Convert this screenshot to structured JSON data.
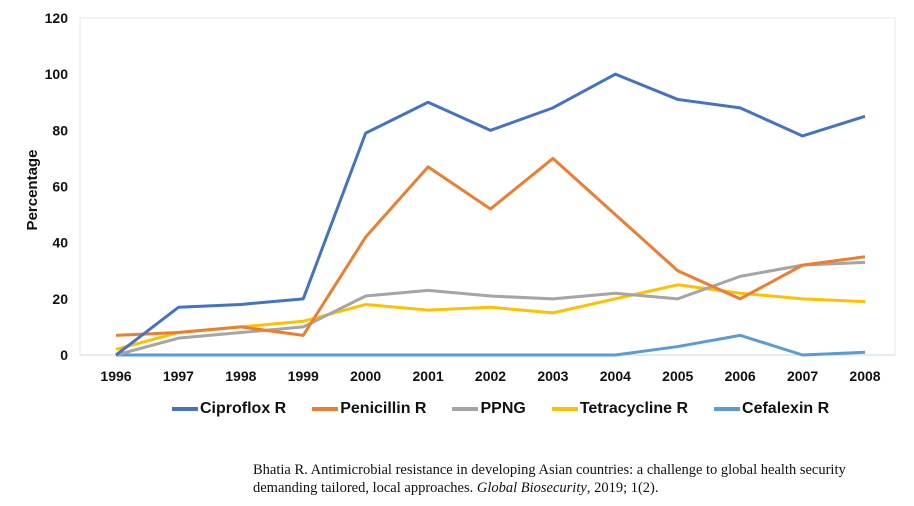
{
  "chart_data": {
    "type": "line",
    "title": "",
    "xlabel": "",
    "ylabel": "Percentage",
    "ylim": [
      0,
      120
    ],
    "yticks": [
      0,
      20,
      40,
      60,
      80,
      100,
      120
    ],
    "grid": false,
    "legend_position": "bottom",
    "x": [
      "1996",
      "1997",
      "1998",
      "1999",
      "2000",
      "2001",
      "2002",
      "2003",
      "2004",
      "2005",
      "2006",
      "2007",
      "2008"
    ],
    "series": [
      {
        "name": "Ciproflox R",
        "color": "#4472C4",
        "values": [
          0,
          17,
          18,
          20,
          79,
          90,
          80,
          88,
          100,
          91,
          88,
          78,
          85
        ]
      },
      {
        "name": "Penicillin R",
        "color": "#ED7D31",
        "values": [
          7,
          8,
          10,
          7,
          42,
          67,
          52,
          70,
          50,
          30,
          20,
          32,
          35
        ]
      },
      {
        "name": "PPNG",
        "color": "#A5A5A5",
        "values": [
          0,
          6,
          8,
          10,
          21,
          23,
          21,
          20,
          22,
          20,
          28,
          32,
          33
        ]
      },
      {
        "name": "Tetracycline R",
        "color": "#FFC000",
        "values": [
          2,
          8,
          10,
          12,
          18,
          16,
          17,
          15,
          20,
          25,
          22,
          20,
          19
        ]
      },
      {
        "name": "Cefalexin R",
        "color": "#5B9BD5",
        "values": [
          0,
          0,
          0,
          0,
          0,
          0,
          0,
          0,
          0,
          3,
          7,
          0,
          1
        ]
      }
    ]
  },
  "citation": {
    "text_before": "Bhatia R. Antimicrobial resistance in developing Asian countries: a challenge to global health security demanding tailored, local approaches. ",
    "journal": "Global Biosecurity",
    "text_after": ", 2019; 1(2)."
  }
}
